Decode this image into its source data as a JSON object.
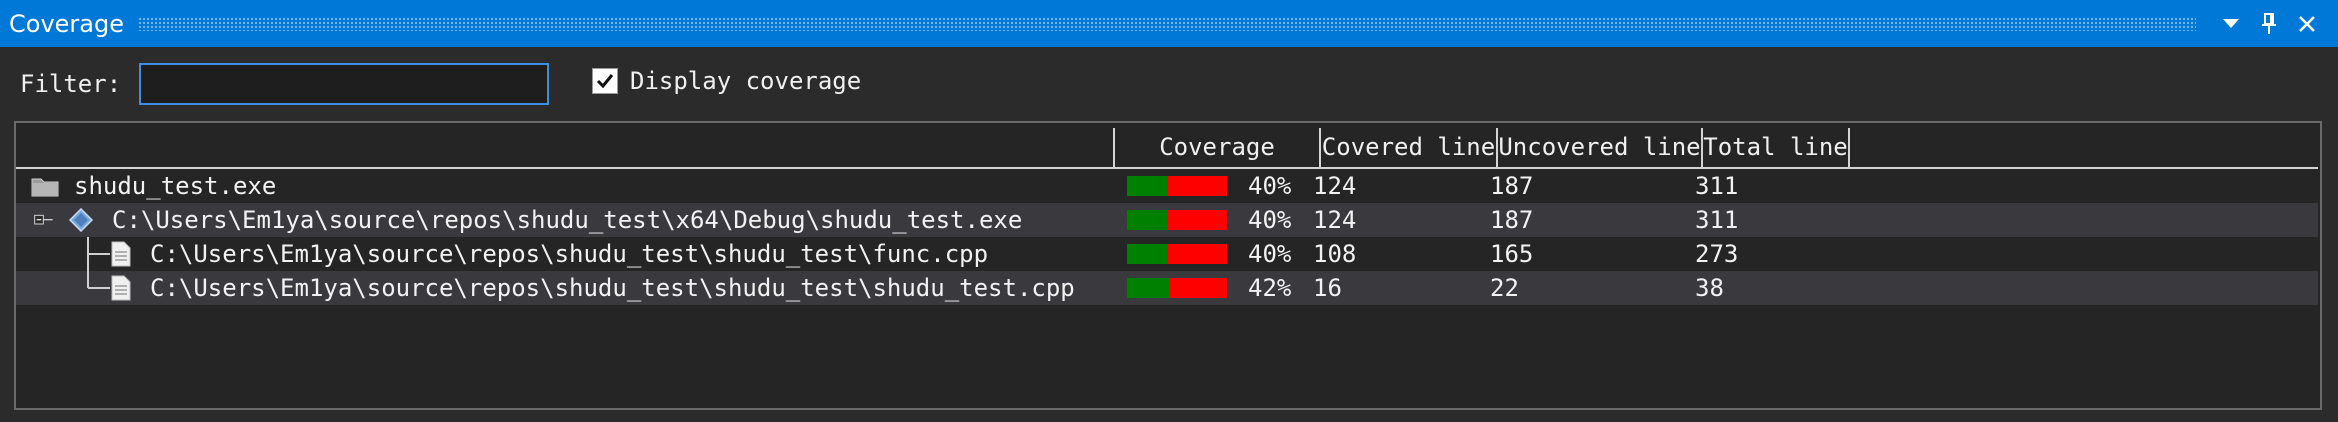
{
  "window": {
    "title": "Coverage"
  },
  "title_buttons": {
    "dropdown_icon": "▾",
    "pin_icon": "📌",
    "close_icon": "✕"
  },
  "filter": {
    "label": "Filter:",
    "value": "",
    "placeholder": ""
  },
  "display_coverage": {
    "label": "Display coverage",
    "checked": true
  },
  "columns": [
    "Coverage",
    "Covered line",
    "Uncovered line",
    "Total line"
  ],
  "rows": [
    {
      "name": "shudu_test.exe",
      "percent": "40%",
      "covered": "124",
      "uncovered": "187",
      "total": "311",
      "fraction": 0.4,
      "icon": "folder-icon"
    },
    {
      "name": "C:\\Users\\Em1ya\\source\\repos\\shudu_test\\x64\\Debug\\shudu_test.exe",
      "percent": "40%",
      "covered": "124",
      "uncovered": "187",
      "total": "311",
      "fraction": 0.4,
      "icon": "module-icon"
    },
    {
      "name": "C:\\Users\\Em1ya\\source\\repos\\shudu_test\\shudu_test\\func.cpp",
      "percent": "40%",
      "covered": "108",
      "uncovered": "165",
      "total": "273",
      "fraction": 0.4,
      "icon": "file-icon"
    },
    {
      "name": "C:\\Users\\Em1ya\\source\\repos\\shudu_test\\shudu_test\\shudu_test.cpp",
      "percent": "42%",
      "covered": "16",
      "uncovered": "22",
      "total": "38",
      "fraction": 0.42,
      "icon": "file-icon"
    }
  ],
  "colors": {
    "accent": "#0078d7",
    "covered": "#008000",
    "uncovered": "#ff0000"
  }
}
